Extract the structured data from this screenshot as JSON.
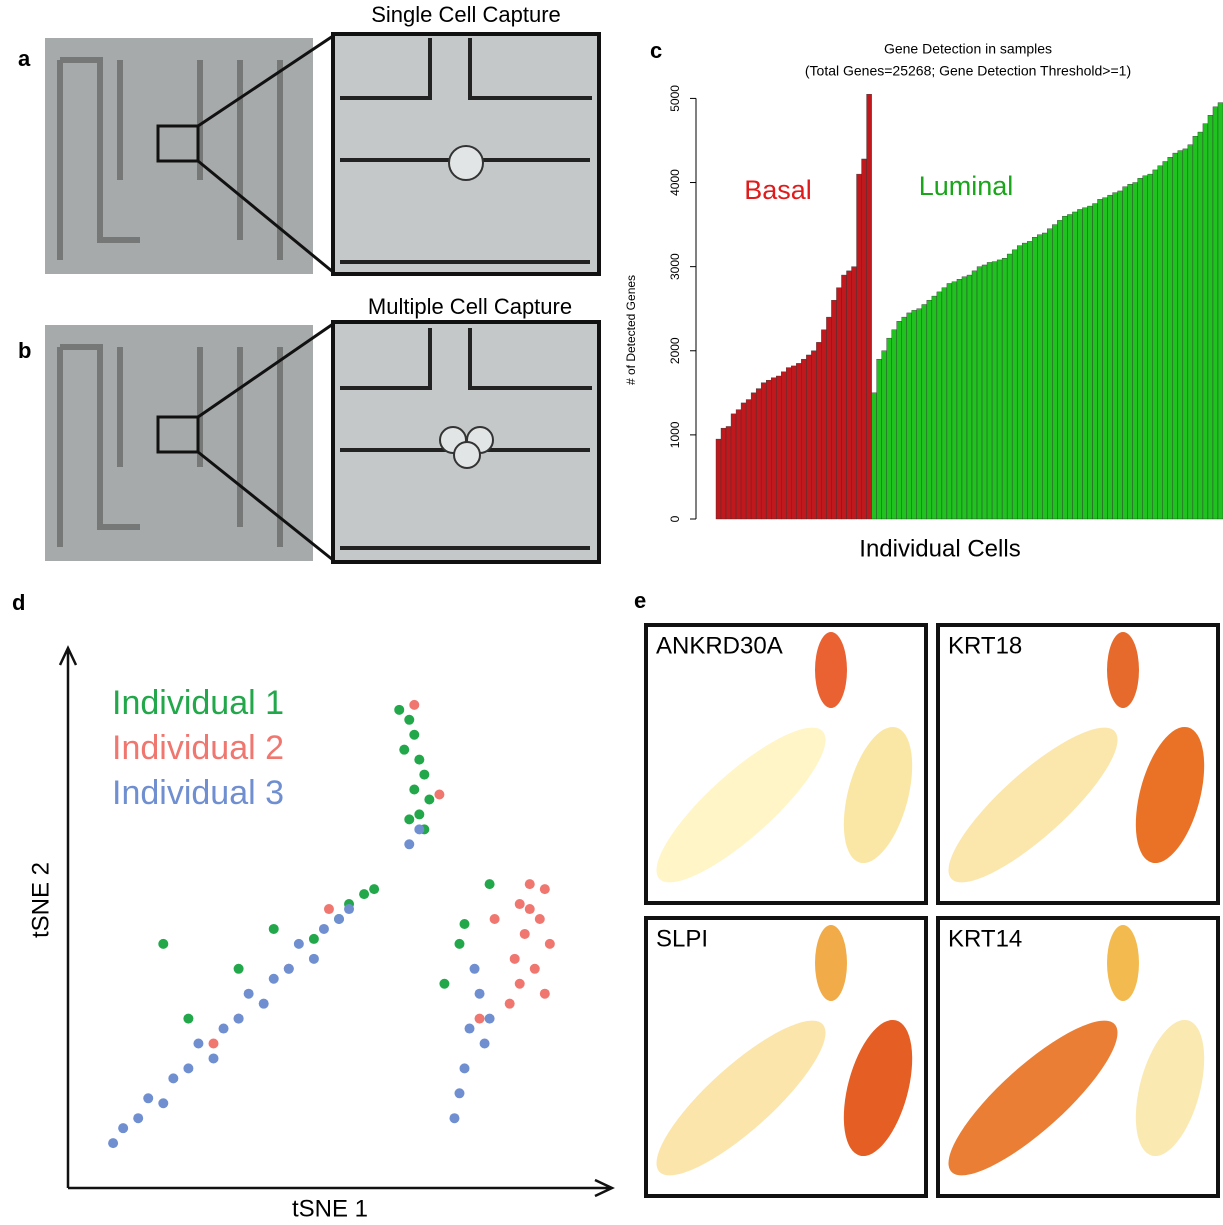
{
  "panel_labels": [
    "a",
    "b",
    "c",
    "d",
    "e"
  ],
  "image_titles": [
    "Single Cell Capture",
    "Multiple Cell Capture"
  ],
  "chart_data": [
    {
      "type": "bar",
      "title": "Gene Detection in samples",
      "subtitle": "(Total Genes=25268; Gene Detection Threshold>=1)",
      "y_label": "# of Detected Genes",
      "x_label": "Individual Cells",
      "ylim": [
        0,
        5100
      ],
      "yticks": [
        0,
        1000,
        2000,
        3000,
        4000,
        5000
      ],
      "series": [
        {
          "name": "Basal",
          "color": "#c0181c",
          "values": [
            950,
            1080,
            1100,
            1250,
            1300,
            1380,
            1420,
            1500,
            1550,
            1620,
            1650,
            1680,
            1700,
            1750,
            1800,
            1820,
            1850,
            1900,
            1950,
            2000,
            2100,
            2250,
            2400,
            2600,
            2750,
            2900,
            2950,
            3000,
            4100,
            4280,
            5050
          ]
        },
        {
          "name": "Luminal",
          "color": "#1fc21f",
          "values": [
            1500,
            1900,
            2000,
            2150,
            2250,
            2350,
            2400,
            2450,
            2480,
            2500,
            2550,
            2600,
            2650,
            2700,
            2750,
            2800,
            2820,
            2850,
            2880,
            2900,
            2950,
            3000,
            3020,
            3050,
            3060,
            3080,
            3100,
            3150,
            3200,
            3250,
            3280,
            3300,
            3350,
            3380,
            3400,
            3450,
            3500,
            3550,
            3600,
            3620,
            3650,
            3680,
            3700,
            3720,
            3750,
            3800,
            3820,
            3850,
            3880,
            3900,
            3950,
            3980,
            4000,
            4050,
            4080,
            4100,
            4150,
            4200,
            4250,
            4300,
            4350,
            4380,
            4400,
            4450,
            4550,
            4600,
            4700,
            4800,
            4900,
            4950
          ]
        }
      ]
    },
    {
      "type": "scatter",
      "x_label": "tSNE 1",
      "y_label": "tSNE 2",
      "xlim": [
        0,
        100
      ],
      "ylim": [
        0,
        100
      ],
      "series": [
        {
          "name": "Individual 1",
          "color": "#22a84a",
          "x": [
            62,
            64,
            65,
            63,
            66,
            67,
            65,
            68,
            66,
            64,
            67,
            55,
            57,
            52,
            50,
            45,
            37,
            30,
            20,
            80,
            75,
            74,
            71,
            15
          ],
          "y": [
            92,
            90,
            87,
            84,
            82,
            79,
            76,
            74,
            71,
            70,
            68,
            55,
            56,
            53,
            50,
            46,
            48,
            40,
            30,
            57,
            49,
            45,
            37,
            45
          ]
        },
        {
          "name": "Individual 2",
          "color": "#ef7770",
          "x": [
            88,
            91,
            86,
            90,
            87,
            92,
            85,
            89,
            86,
            91,
            84,
            88,
            65,
            70,
            48,
            40,
            30,
            25,
            81,
            78
          ],
          "y": [
            57,
            56,
            53,
            50,
            47,
            45,
            42,
            40,
            37,
            35,
            33,
            52,
            93,
            75,
            52,
            40,
            30,
            25,
            50,
            30
          ]
        },
        {
          "name": "Individual 3",
          "color": "#6f8fd0",
          "x": [
            5,
            7,
            10,
            12,
            15,
            17,
            20,
            22,
            25,
            27,
            30,
            32,
            35,
            37,
            40,
            42,
            45,
            47,
            50,
            52,
            77,
            78,
            80,
            76,
            79,
            75,
            74,
            73,
            66,
            64
          ],
          "y": [
            5,
            8,
            10,
            14,
            13,
            18,
            20,
            25,
            22,
            28,
            30,
            35,
            33,
            38,
            40,
            45,
            42,
            48,
            50,
            52,
            40,
            35,
            30,
            28,
            25,
            20,
            15,
            10,
            68,
            65
          ]
        }
      ]
    }
  ],
  "gene_panels": [
    "ANKRD30A",
    "KRT18",
    "SLPI",
    "KRT14"
  ]
}
